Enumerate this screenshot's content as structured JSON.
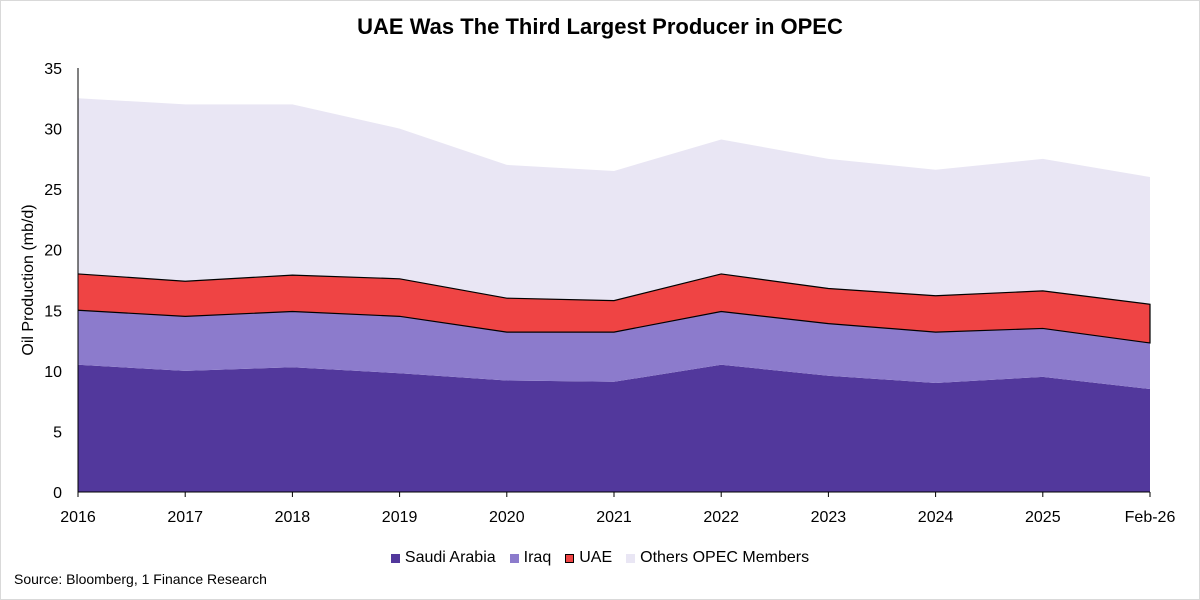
{
  "chart_data": {
    "type": "area",
    "stacked": true,
    "title": "UAE Was The Third Largest Producer in OPEC",
    "ylabel": "Oil Production (mb/d)",
    "xlabel": "",
    "x": [
      "2016",
      "2017",
      "2018",
      "2019",
      "2020",
      "2021",
      "2022",
      "2023",
      "2024",
      "2025",
      "Feb-26"
    ],
    "ylim": [
      0,
      35
    ],
    "yticks": [
      0,
      5,
      10,
      15,
      20,
      25,
      30,
      35
    ],
    "grid": false,
    "legend_position": "bottom",
    "series": [
      {
        "name": "Saudi Arabia",
        "color": "#52389c",
        "values": [
          10.5,
          10.0,
          10.3,
          9.8,
          9.2,
          9.1,
          10.5,
          9.6,
          9.0,
          9.5,
          8.5
        ]
      },
      {
        "name": "Iraq",
        "color": "#8c7bcc",
        "values": [
          4.5,
          4.5,
          4.6,
          4.7,
          4.0,
          4.1,
          4.4,
          4.3,
          4.2,
          4.0,
          3.8
        ]
      },
      {
        "name": "UAE",
        "color": "#ef4444",
        "values": [
          3.0,
          2.9,
          3.0,
          3.1,
          2.8,
          2.6,
          3.1,
          2.9,
          3.0,
          3.1,
          3.2
        ]
      },
      {
        "name": "Others OPEC Members",
        "color": "#e9e6f4",
        "values": [
          14.5,
          14.6,
          14.1,
          12.4,
          11.0,
          10.7,
          11.1,
          10.7,
          10.4,
          10.9,
          10.5
        ]
      }
    ]
  },
  "source": "Source: Bloomberg, 1 Finance Research"
}
